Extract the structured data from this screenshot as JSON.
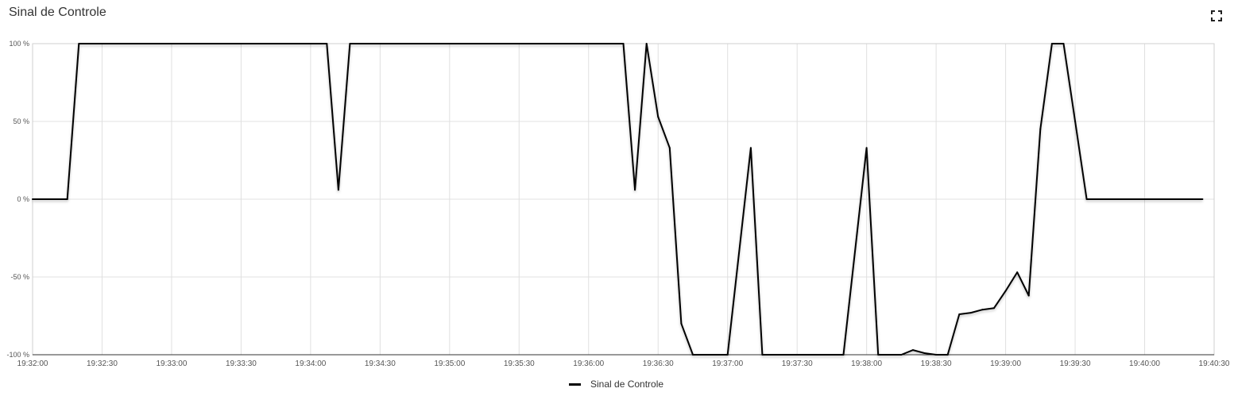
{
  "title": "Sinal de Controle",
  "icons": {
    "fullscreen": "fullscreen-expand-icon"
  },
  "chart_data": {
    "type": "line",
    "title": "Sinal de Controle",
    "xlabel": "",
    "ylabel": "",
    "ylim": [
      -100,
      100
    ],
    "yticks": [
      100,
      50,
      0,
      -50,
      -100
    ],
    "ytick_labels": [
      "100 %",
      "50 %",
      "0 %",
      "-50 %",
      "-100 %"
    ],
    "xlim": [
      "19:32:00",
      "19:40:30"
    ],
    "xtick_labels": [
      "19:32:00",
      "19:32:30",
      "19:33:00",
      "19:33:30",
      "19:34:00",
      "19:34:30",
      "19:35:00",
      "19:35:30",
      "19:36:00",
      "19:36:30",
      "19:37:00",
      "19:37:30",
      "19:38:00",
      "19:38:30",
      "19:39:00",
      "19:39:30",
      "19:40:00",
      "19:40:30"
    ],
    "grid": true,
    "legend_position": "bottom",
    "series": [
      {
        "name": "Sinal de Controle",
        "color": "#000000",
        "points": [
          [
            "19:32:00",
            0
          ],
          [
            "19:32:15",
            0
          ],
          [
            "19:32:20",
            100
          ],
          [
            "19:34:07",
            100
          ],
          [
            "19:34:12",
            6
          ],
          [
            "19:34:17",
            100
          ],
          [
            "19:36:15",
            100
          ],
          [
            "19:36:20",
            6
          ],
          [
            "19:36:25",
            100
          ],
          [
            "19:36:30",
            53
          ],
          [
            "19:36:35",
            33
          ],
          [
            "19:36:40",
            -80
          ],
          [
            "19:36:45",
            -100
          ],
          [
            "19:37:00",
            -100
          ],
          [
            "19:37:10",
            33
          ],
          [
            "19:37:15",
            -100
          ],
          [
            "19:37:50",
            -100
          ],
          [
            "19:38:00",
            33
          ],
          [
            "19:38:05",
            -100
          ],
          [
            "19:38:15",
            -100
          ],
          [
            "19:38:20",
            -97
          ],
          [
            "19:38:25",
            -99
          ],
          [
            "19:38:30",
            -100
          ],
          [
            "19:38:35",
            -100
          ],
          [
            "19:38:40",
            -74
          ],
          [
            "19:38:45",
            -73
          ],
          [
            "19:38:50",
            -71
          ],
          [
            "19:38:55",
            -70
          ],
          [
            "19:39:00",
            -59
          ],
          [
            "19:39:05",
            -47
          ],
          [
            "19:39:10",
            -62
          ],
          [
            "19:39:15",
            45
          ],
          [
            "19:39:20",
            100
          ],
          [
            "19:39:25",
            100
          ],
          [
            "19:39:30",
            50
          ],
          [
            "19:39:35",
            0
          ],
          [
            "19:40:25",
            0
          ]
        ]
      }
    ]
  }
}
